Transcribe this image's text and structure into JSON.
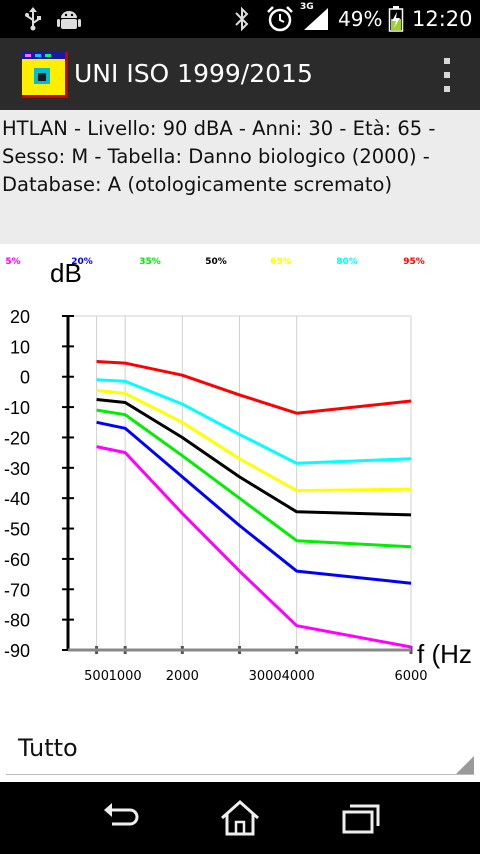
{
  "status_bar": {
    "network_type": "3G",
    "battery_percent": "49%",
    "time": "12:20",
    "icons": [
      "usb-icon",
      "android-debug-icon",
      "bluetooth-icon",
      "alarm-icon",
      "signal-icon",
      "battery-charging-icon"
    ]
  },
  "action_bar": {
    "title": "UNI ISO 1999/2015",
    "icon": "app-logo-icon",
    "menu_icon": "overflow-menu-icon"
  },
  "info": {
    "text": "HTLAN - Livello: 90 dBA - Anni: 30 - Età: 65 -\nSesso: M - Tabella: Danno biologico (2000) -\nDatabase: A (otologicamente scremato)"
  },
  "chart_data": {
    "type": "line",
    "ylabel": "dB",
    "xlabel": "f (Hz",
    "x": [
      500,
      1000,
      2000,
      3000,
      4000,
      6000
    ],
    "x_ticks": [
      500,
      1000,
      2000,
      3000,
      4000,
      6000
    ],
    "x_tick_labels": [
      "500",
      "1000",
      "2000",
      "3000",
      "4000",
      "6000"
    ],
    "ylim": [
      -90,
      20
    ],
    "y_ticks": [
      20,
      10,
      0,
      -10,
      -20,
      -30,
      -40,
      -50,
      -60,
      -70,
      -80,
      -90
    ],
    "y_tick_labels": [
      "20",
      "10",
      "0",
      "-10",
      "-20",
      "-30",
      "-40",
      "-50",
      "-60",
      "-70",
      "-80",
      "-90"
    ],
    "grid": true,
    "legend_position": "top",
    "series": [
      {
        "name": "5%",
        "color": "#ff00ff",
        "values": [
          -23,
          -25,
          -45,
          -64,
          -82,
          -89
        ]
      },
      {
        "name": "20%",
        "color": "#0000ff",
        "values": [
          -15,
          -17,
          -33,
          -49,
          -64,
          -68
        ]
      },
      {
        "name": "35%",
        "color": "#00ee00",
        "values": [
          -11,
          -12.5,
          -26,
          -40,
          -54,
          -56
        ]
      },
      {
        "name": "50%",
        "color": "#000000",
        "values": [
          -7.5,
          -8.5,
          -20,
          -33,
          -44.5,
          -45.5
        ]
      },
      {
        "name": "65%",
        "color": "#ffff00",
        "values": [
          -4.5,
          -5.5,
          -15,
          -27,
          -37.5,
          -37
        ]
      },
      {
        "name": "80%",
        "color": "#00ffff",
        "values": [
          -1,
          -1.5,
          -9,
          -19,
          -28.5,
          -27
        ]
      },
      {
        "name": "95%",
        "color": "#ff0000",
        "values": [
          5,
          4.5,
          0.5,
          -6,
          -12,
          -8
        ]
      }
    ]
  },
  "spinner": {
    "value": "Tutto"
  },
  "nav_bar": {
    "icons": [
      "back-icon",
      "home-icon",
      "recent-apps-icon"
    ]
  }
}
